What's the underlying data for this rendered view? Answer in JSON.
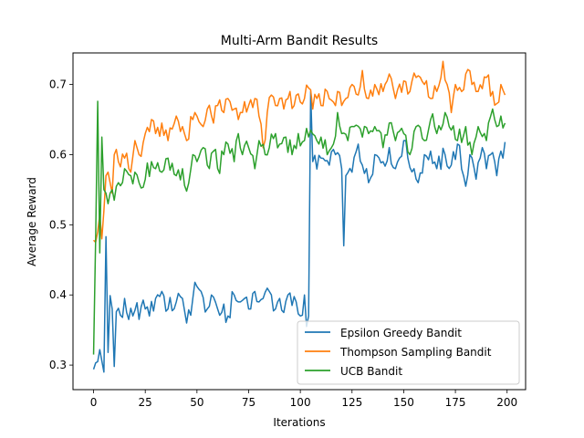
{
  "chart_data": {
    "type": "line",
    "title": "Multi-Arm Bandit Results",
    "xlabel": "Iterations",
    "ylabel": "Average Reward",
    "xlim": [
      -9.95,
      208.95
    ],
    "ylim": [
      0.265,
      0.745
    ],
    "xticks": [
      0,
      25,
      50,
      75,
      100,
      125,
      150,
      175,
      200
    ],
    "yticks": [
      0.3,
      0.4,
      0.5,
      0.6,
      0.7
    ],
    "ytick_labels": [
      "0.3",
      "0.4",
      "0.5",
      "0.6",
      "0.7"
    ],
    "grid": false,
    "legend_position": "lower-right",
    "series": [
      {
        "name": "Epsilon Greedy Bandit",
        "color": "#1f77b4",
        "keypoints": [
          [
            0,
            0.294
          ],
          [
            1,
            0.303
          ],
          [
            2,
            0.305
          ],
          [
            3,
            0.322
          ],
          [
            4,
            0.306
          ],
          [
            5,
            0.29
          ],
          [
            6,
            0.483
          ],
          [
            7,
            0.318
          ],
          [
            8,
            0.399
          ],
          [
            9,
            0.38
          ],
          [
            10,
            0.298
          ],
          [
            11,
            0.376
          ],
          [
            12,
            0.381
          ],
          [
            13,
            0.371
          ],
          [
            14,
            0.368
          ],
          [
            15,
            0.395
          ],
          [
            16,
            0.375
          ],
          [
            17,
            0.365
          ],
          [
            18,
            0.381
          ],
          [
            19,
            0.37
          ],
          [
            20,
            0.378
          ],
          [
            25,
            0.38
          ],
          [
            27,
            0.37
          ],
          [
            30,
            0.395
          ],
          [
            33,
            0.405
          ],
          [
            36,
            0.38
          ],
          [
            40,
            0.39
          ],
          [
            43,
            0.395
          ],
          [
            45,
            0.36
          ],
          [
            48,
            0.395
          ],
          [
            50,
            0.412
          ],
          [
            52,
            0.405
          ],
          [
            55,
            0.38
          ],
          [
            57,
            0.4
          ],
          [
            60,
            0.38
          ],
          [
            62,
            0.375
          ],
          [
            65,
            0.37
          ],
          [
            68,
            0.4
          ],
          [
            70,
            0.39
          ],
          [
            73,
            0.395
          ],
          [
            76,
            0.38
          ],
          [
            78,
            0.405
          ],
          [
            80,
            0.39
          ],
          [
            82,
            0.395
          ],
          [
            85,
            0.405
          ],
          [
            88,
            0.38
          ],
          [
            90,
            0.395
          ],
          [
            92,
            0.375
          ],
          [
            94,
            0.4
          ],
          [
            96,
            0.385
          ],
          [
            98,
            0.39
          ],
          [
            100,
            0.37
          ],
          [
            102,
            0.4
          ],
          [
            103,
            0.355
          ],
          [
            104,
            0.37
          ],
          [
            105,
            0.69
          ],
          [
            106,
            0.59
          ],
          [
            110,
            0.595
          ],
          [
            114,
            0.585
          ],
          [
            117,
            0.6
          ],
          [
            120,
            0.58
          ],
          [
            121,
            0.47
          ],
          [
            122,
            0.57
          ],
          [
            125,
            0.575
          ],
          [
            128,
            0.615
          ],
          [
            130,
            0.585
          ],
          [
            133,
            0.56
          ],
          [
            136,
            0.6
          ],
          [
            140,
            0.59
          ],
          [
            143,
            0.61
          ],
          [
            146,
            0.58
          ],
          [
            150,
            0.62
          ],
          [
            152,
            0.595
          ],
          [
            155,
            0.58
          ],
          [
            157,
            0.56
          ],
          [
            160,
            0.6
          ],
          [
            163,
            0.605
          ],
          [
            166,
            0.58
          ],
          [
            170,
            0.6
          ],
          [
            173,
            0.585
          ],
          [
            176,
            0.615
          ],
          [
            180,
            0.555
          ],
          [
            182,
            0.6
          ],
          [
            185,
            0.565
          ],
          [
            188,
            0.61
          ],
          [
            190,
            0.58
          ],
          [
            192,
            0.6
          ],
          [
            195,
            0.57
          ],
          [
            197,
            0.605
          ],
          [
            198,
            0.595
          ],
          [
            199,
            0.618
          ]
        ]
      },
      {
        "name": "Thompson Sampling Bandit",
        "color": "#ff7f0e",
        "keypoints": [
          [
            0,
            0.478
          ],
          [
            1,
            0.475
          ],
          [
            2,
            0.49
          ],
          [
            3,
            0.515
          ],
          [
            4,
            0.48
          ],
          [
            5,
            0.52
          ],
          [
            6,
            0.57
          ],
          [
            7,
            0.575
          ],
          [
            8,
            0.56
          ],
          [
            9,
            0.545
          ],
          [
            10,
            0.6
          ],
          [
            12,
            0.59
          ],
          [
            15,
            0.595
          ],
          [
            18,
            0.575
          ],
          [
            20,
            0.62
          ],
          [
            22,
            0.6
          ],
          [
            25,
            0.63
          ],
          [
            28,
            0.65
          ],
          [
            30,
            0.63
          ],
          [
            33,
            0.645
          ],
          [
            36,
            0.62
          ],
          [
            40,
            0.655
          ],
          [
            43,
            0.64
          ],
          [
            45,
            0.62
          ],
          [
            48,
            0.65
          ],
          [
            50,
            0.655
          ],
          [
            53,
            0.64
          ],
          [
            55,
            0.665
          ],
          [
            58,
            0.645
          ],
          [
            60,
            0.67
          ],
          [
            63,
            0.66
          ],
          [
            65,
            0.68
          ],
          [
            68,
            0.665
          ],
          [
            70,
            0.65
          ],
          [
            72,
            0.66
          ],
          [
            75,
            0.67
          ],
          [
            78,
            0.68
          ],
          [
            80,
            0.655
          ],
          [
            82,
            0.61
          ],
          [
            84,
            0.66
          ],
          [
            86,
            0.685
          ],
          [
            88,
            0.67
          ],
          [
            90,
            0.68
          ],
          [
            92,
            0.665
          ],
          [
            95,
            0.69
          ],
          [
            97,
            0.67
          ],
          [
            100,
            0.675
          ],
          [
            102,
            0.68
          ],
          [
            104,
            0.695
          ],
          [
            106,
            0.665
          ],
          [
            108,
            0.68
          ],
          [
            110,
            0.67
          ],
          [
            113,
            0.69
          ],
          [
            116,
            0.675
          ],
          [
            118,
            0.69
          ],
          [
            120,
            0.67
          ],
          [
            122,
            0.68
          ],
          [
            125,
            0.7
          ],
          [
            128,
            0.685
          ],
          [
            130,
            0.72
          ],
          [
            133,
            0.68
          ],
          [
            136,
            0.7
          ],
          [
            140,
            0.69
          ],
          [
            143,
            0.715
          ],
          [
            146,
            0.68
          ],
          [
            150,
            0.705
          ],
          [
            153,
            0.69
          ],
          [
            156,
            0.71
          ],
          [
            160,
            0.7
          ],
          [
            163,
            0.68
          ],
          [
            166,
            0.69
          ],
          [
            168,
            0.71
          ],
          [
            169,
            0.733
          ],
          [
            171,
            0.7
          ],
          [
            173,
            0.66
          ],
          [
            175,
            0.7
          ],
          [
            178,
            0.69
          ],
          [
            180,
            0.715
          ],
          [
            183,
            0.7
          ],
          [
            186,
            0.69
          ],
          [
            190,
            0.71
          ],
          [
            193,
            0.69
          ],
          [
            196,
            0.675
          ],
          [
            197,
            0.7
          ],
          [
            198,
            0.692
          ],
          [
            199,
            0.685
          ]
        ]
      },
      {
        "name": "UCB Bandit",
        "color": "#2ca02c",
        "keypoints": [
          [
            0,
            0.315
          ],
          [
            1,
            0.48
          ],
          [
            2,
            0.676
          ],
          [
            3,
            0.46
          ],
          [
            4,
            0.625
          ],
          [
            5,
            0.55
          ],
          [
            6,
            0.545
          ],
          [
            7,
            0.53
          ],
          [
            8,
            0.545
          ],
          [
            9,
            0.55
          ],
          [
            10,
            0.535
          ],
          [
            12,
            0.56
          ],
          [
            15,
            0.58
          ],
          [
            18,
            0.57
          ],
          [
            20,
            0.575
          ],
          [
            22,
            0.56
          ],
          [
            25,
            0.565
          ],
          [
            28,
            0.59
          ],
          [
            30,
            0.58
          ],
          [
            33,
            0.575
          ],
          [
            36,
            0.595
          ],
          [
            40,
            0.57
          ],
          [
            43,
            0.58
          ],
          [
            45,
            0.548
          ],
          [
            48,
            0.6
          ],
          [
            50,
            0.59
          ],
          [
            53,
            0.61
          ],
          [
            55,
            0.585
          ],
          [
            58,
            0.605
          ],
          [
            60,
            0.58
          ],
          [
            63,
            0.6
          ],
          [
            65,
            0.615
          ],
          [
            68,
            0.59
          ],
          [
            70,
            0.63
          ],
          [
            72,
            0.6
          ],
          [
            75,
            0.61
          ],
          [
            78,
            0.58
          ],
          [
            80,
            0.62
          ],
          [
            83,
            0.6
          ],
          [
            85,
            0.61
          ],
          [
            88,
            0.63
          ],
          [
            90,
            0.615
          ],
          [
            93,
            0.625
          ],
          [
            96,
            0.6
          ],
          [
            99,
            0.63
          ],
          [
            102,
            0.62
          ],
          [
            105,
            0.635
          ],
          [
            108,
            0.62
          ],
          [
            110,
            0.625
          ],
          [
            113,
            0.6
          ],
          [
            116,
            0.615
          ],
          [
            118,
            0.66
          ],
          [
            120,
            0.63
          ],
          [
            123,
            0.62
          ],
          [
            126,
            0.64
          ],
          [
            130,
            0.625
          ],
          [
            133,
            0.63
          ],
          [
            136,
            0.64
          ],
          [
            140,
            0.61
          ],
          [
            143,
            0.645
          ],
          [
            146,
            0.62
          ],
          [
            150,
            0.63
          ],
          [
            153,
            0.6
          ],
          [
            156,
            0.64
          ],
          [
            160,
            0.62
          ],
          [
            163,
            0.65
          ],
          [
            166,
            0.63
          ],
          [
            170,
            0.66
          ],
          [
            173,
            0.635
          ],
          [
            176,
            0.62
          ],
          [
            180,
            0.64
          ],
          [
            183,
            0.6
          ],
          [
            186,
            0.64
          ],
          [
            190,
            0.62
          ],
          [
            193,
            0.665
          ],
          [
            195,
            0.64
          ],
          [
            197,
            0.655
          ],
          [
            198,
            0.638
          ],
          [
            199,
            0.645
          ]
        ]
      }
    ]
  }
}
